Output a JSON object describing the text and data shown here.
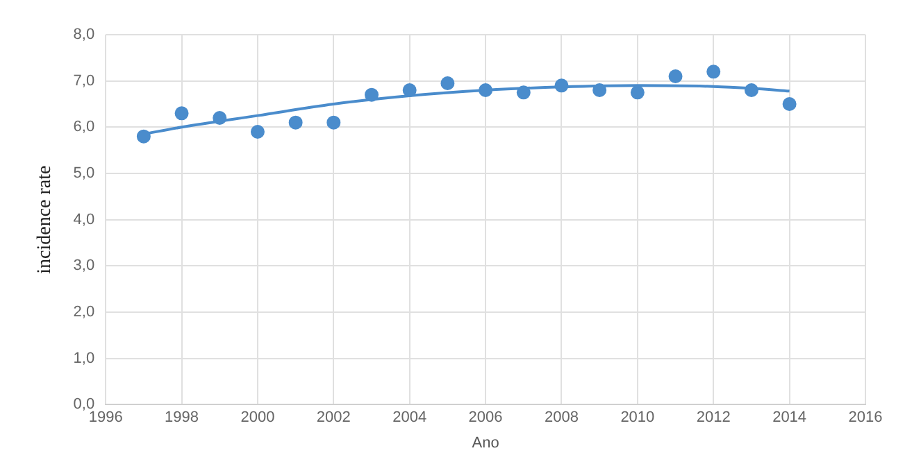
{
  "chart_data": {
    "type": "scatter",
    "xlabel": "Ano",
    "ylabel": "incidence rate",
    "xlim": [
      1996,
      2016
    ],
    "xticks": [
      1996,
      1998,
      2000,
      2002,
      2004,
      2006,
      2008,
      2010,
      2012,
      2014,
      2016
    ],
    "ylim": [
      0,
      8
    ],
    "yticks": [
      {
        "value": 0,
        "label": "0,0"
      },
      {
        "value": 1,
        "label": "1,0"
      },
      {
        "value": 2,
        "label": "2,0"
      },
      {
        "value": 3,
        "label": "3,0"
      },
      {
        "value": 4,
        "label": "4,0"
      },
      {
        "value": 5,
        "label": "5,0"
      },
      {
        "value": 6,
        "label": "6,0"
      },
      {
        "value": 7,
        "label": "7,0"
      },
      {
        "value": 8,
        "label": "8,0"
      }
    ],
    "grid": true,
    "legend": false,
    "marker": "circle",
    "series": [
      {
        "color": "#4a8ccc",
        "x": [
          1997,
          1998,
          1999,
          2000,
          2001,
          2002,
          2003,
          2004,
          2005,
          2006,
          2007,
          2008,
          2009,
          2010,
          2011,
          2012,
          2013,
          2014
        ],
        "values": [
          5.8,
          6.3,
          6.2,
          5.9,
          6.1,
          6.1,
          6.7,
          6.8,
          6.95,
          6.8,
          6.75,
          6.9,
          6.8,
          6.75,
          7.1,
          7.2,
          6.8,
          6.5
        ]
      },
      {
        "type": "line",
        "color": "#4a8ccc",
        "marker": "none",
        "line_style": "solid",
        "x": [
          1997,
          1998,
          2000,
          2002,
          2004,
          2006,
          2008,
          2010,
          2012,
          2013,
          2014
        ],
        "values": [
          5.85,
          6.0,
          6.25,
          6.5,
          6.68,
          6.8,
          6.87,
          6.9,
          6.88,
          6.84,
          6.78
        ]
      }
    ]
  }
}
